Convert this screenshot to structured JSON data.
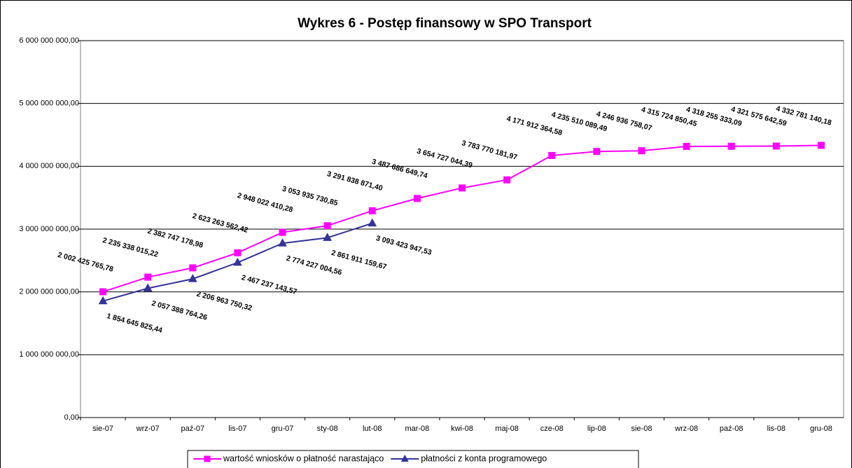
{
  "chart_data": {
    "type": "line",
    "title": "Wykres 6 - Postęp finansowy w SPO Transport",
    "categories": [
      "sie-07",
      "wrz-07",
      "paź-07",
      "lis-07",
      "gru-07",
      "sty-08",
      "lut-08",
      "mar-08",
      "kwi-08",
      "maj-08",
      "cze-08",
      "lip-08",
      "sie-08",
      "wrz-08",
      "paź-08",
      "lis-08",
      "gru-08"
    ],
    "series": [
      {
        "name": "wartość wniosków o płatność narastająco",
        "color": "#ff00ff",
        "marker": "square",
        "values": [
          2002425765.78,
          2235338015.22,
          2382747178.98,
          2623263562.42,
          2948022410.28,
          3053935730.85,
          3291838871.4,
          3487686649.74,
          3654727044.39,
          3783770181.97,
          4171912364.58,
          4235510089.49,
          4246936758.07,
          4315724850.45,
          4318255333.09,
          4321575642.59,
          4332781140.18
        ],
        "value_labels": [
          "2 002 425 765,78",
          "2 235 338 015,22",
          "2 382 747 178,98",
          "2 623 263 562,42",
          "2 948 022 410,28",
          "3 053 935 730,85",
          "3 291 838 871,40",
          "3 487 686 649,74",
          "3 654 727 044,39",
          "3 783 770 181,97",
          "4 171 912 364,58",
          "4 235 510 089,49",
          "4 246 936 758,07",
          "4 315 724 850,45",
          "4 318 255 333,09",
          "4 321 575 642,59",
          "4 332 781 140,18"
        ]
      },
      {
        "name": "płatności z konta programowego",
        "color": "#333399",
        "marker": "triangle",
        "values": [
          1854645825.44,
          2057388764.26,
          2206963750.32,
          2467237143.57,
          2774227004.56,
          2861911159.67,
          3093423947.53,
          null,
          null,
          null,
          null,
          null,
          null,
          null,
          null,
          null,
          null
        ],
        "value_labels": [
          "1 854 645 825,44",
          "2 057 388 764,26",
          "2 206 963 750,32",
          "2 467 237 143,57",
          "2 774 227 004,56",
          "2 861 911 159,67",
          "3 093 423 947,53",
          null,
          null,
          null,
          null,
          null,
          null,
          null,
          null,
          null,
          null
        ]
      }
    ],
    "ylim": [
      0,
      6000000000
    ],
    "yticks": [
      {
        "value": 0,
        "label": "0,00"
      },
      {
        "value": 1000000000,
        "label": "1 000 000 000,00"
      },
      {
        "value": 2000000000,
        "label": "2 000 000 000,00"
      },
      {
        "value": 3000000000,
        "label": "3 000 000 000,00"
      },
      {
        "value": 4000000000,
        "label": "4 000 000 000,00"
      },
      {
        "value": 5000000000,
        "label": "5 000 000 000,00"
      },
      {
        "value": 6000000000,
        "label": "6 000 000 000,00"
      }
    ],
    "grid": true,
    "legend": "bottom"
  }
}
